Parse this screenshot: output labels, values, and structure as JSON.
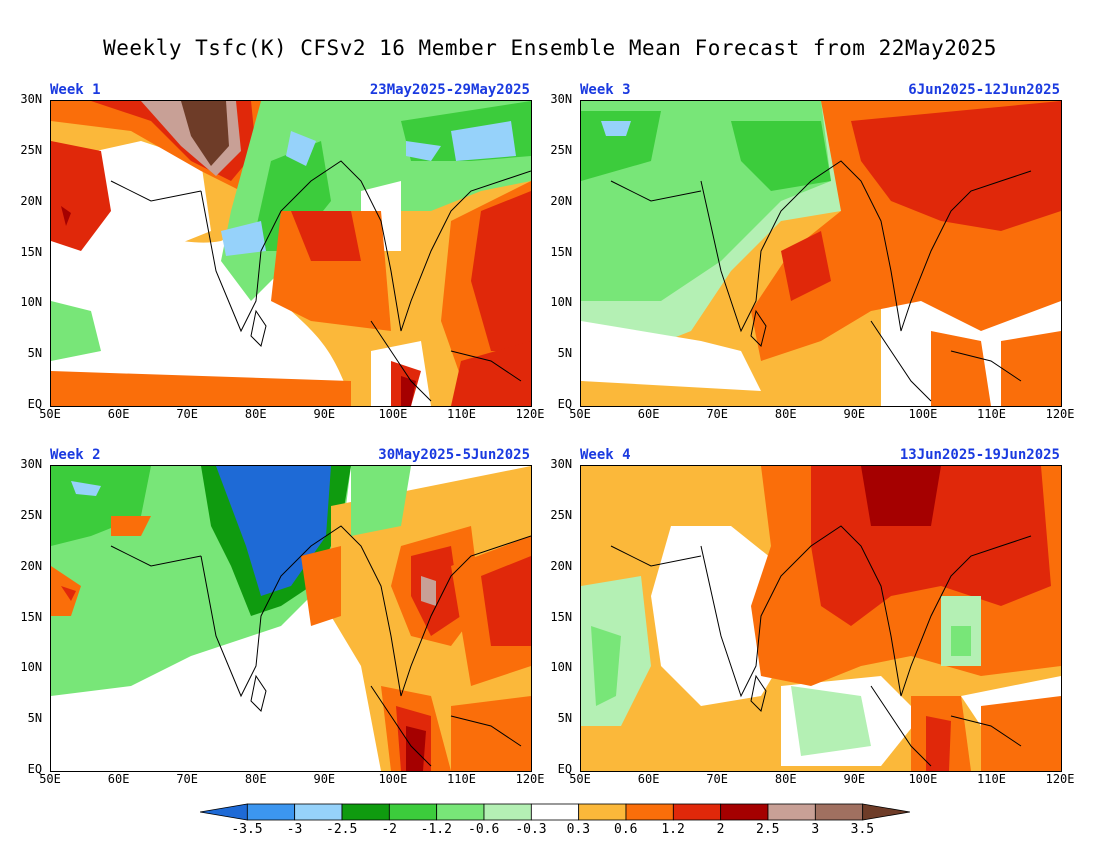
{
  "title": "Weekly Tsfc(K) CFSv2 16 Member Ensemble Mean Forecast from 22May2025",
  "axes": {
    "x_ticks": [
      "50E",
      "60E",
      "70E",
      "80E",
      "90E",
      "100E",
      "110E",
      "120E"
    ],
    "y_ticks": [
      "30N",
      "25N",
      "20N",
      "15N",
      "10N",
      "5N",
      "EQ"
    ]
  },
  "panels": [
    {
      "week": "Week 1",
      "dates": "23May2025-29May2025"
    },
    {
      "week": "Week 3",
      "dates": "6Jun2025-12Jun2025"
    },
    {
      "week": "Week 2",
      "dates": "30May2025-5Jun2025"
    },
    {
      "week": "Week 4",
      "dates": "13Jun2025-19Jun2025"
    }
  ],
  "colorbar": {
    "labels": [
      "-3.5",
      "-3",
      "-2.5",
      "-2",
      "-1.2",
      "-0.6",
      "-0.3",
      "0.3",
      "0.6",
      "1.2",
      "2",
      "2.5",
      "3",
      "3.5"
    ],
    "colors": [
      "#1e6ad6",
      "#3c96f0",
      "#96d2fa",
      "#0f9b0f",
      "#3ccc3c",
      "#78e678",
      "#b4f0b4",
      "#ffffff",
      "#fbb83a",
      "#fa6e0a",
      "#e0280a",
      "#a50000",
      "#c8a096",
      "#a07060",
      "#6e3c28"
    ]
  }
}
